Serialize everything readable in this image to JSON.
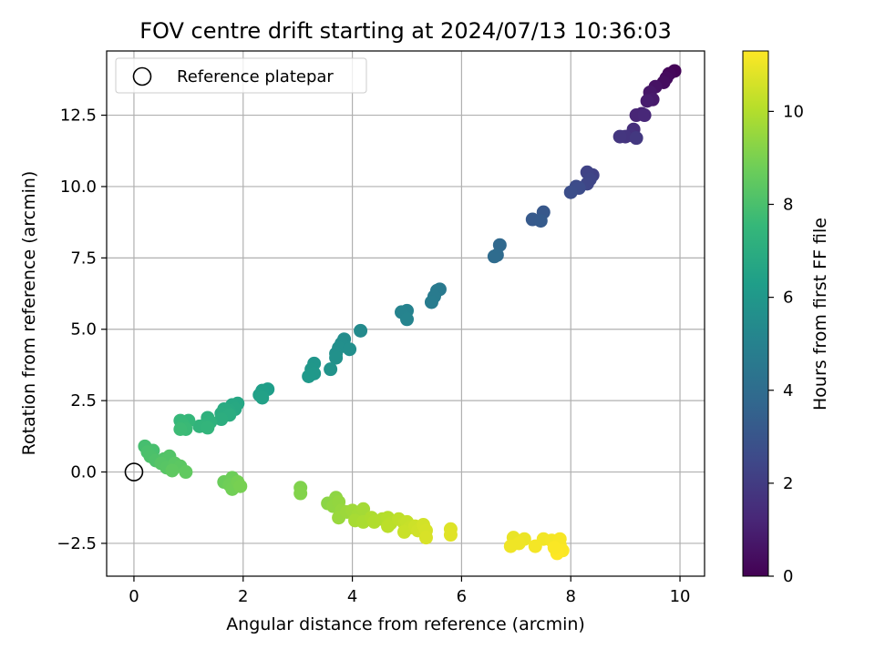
{
  "chart_data": {
    "type": "scatter",
    "title": "FOV centre drift starting at 2024/07/13 10:36:03",
    "xlabel": "Angular distance from reference (arcmin)",
    "ylabel": "Rotation from reference (arcmin)",
    "colorbar_label": "Hours from first FF file",
    "xlim": [
      -0.5,
      10.45
    ],
    "ylim": [
      -3.65,
      14.75
    ],
    "colorbar_range": [
      0,
      11.3
    ],
    "x_ticks": [
      0,
      2,
      4,
      6,
      8,
      10
    ],
    "x_tick_labels": [
      "0",
      "2",
      "4",
      "6",
      "8",
      "10"
    ],
    "y_ticks": [
      -2.5,
      0,
      2.5,
      5,
      7.5,
      10,
      12.5
    ],
    "y_tick_labels": [
      "−2.5",
      "0.0",
      "2.5",
      "5.0",
      "7.5",
      "10.0",
      "12.5"
    ],
    "colorbar_ticks": [
      0,
      2,
      4,
      6,
      8,
      10
    ],
    "colorbar_tick_labels": [
      "0",
      "2",
      "4",
      "6",
      "8",
      "10"
    ],
    "colormap": "viridis",
    "grid": true,
    "legend": {
      "position": "top-left",
      "entries": [
        "Reference platepar"
      ]
    },
    "reference_point": {
      "x": 0,
      "y": 0,
      "label": "Reference platepar"
    },
    "points": [
      [
        9.9,
        14.05,
        0.1
      ],
      [
        9.8,
        13.95,
        0.2
      ],
      [
        9.75,
        13.8,
        0.3
      ],
      [
        9.7,
        13.65,
        0.4
      ],
      [
        9.55,
        13.5,
        0.55
      ],
      [
        9.45,
        13.3,
        0.7
      ],
      [
        9.5,
        13.05,
        0.8
      ],
      [
        9.4,
        13.0,
        0.9
      ],
      [
        9.3,
        12.55,
        1.1
      ],
      [
        9.2,
        12.5,
        1.2
      ],
      [
        9.35,
        12.5,
        1.25
      ],
      [
        9.15,
        12.0,
        1.5
      ],
      [
        9.1,
        11.8,
        1.6
      ],
      [
        9.0,
        11.75,
        1.7
      ],
      [
        8.9,
        11.75,
        1.8
      ],
      [
        9.2,
        11.7,
        1.85
      ],
      [
        8.4,
        10.4,
        2.2
      ],
      [
        8.3,
        10.5,
        2.3
      ],
      [
        8.35,
        10.25,
        2.35
      ],
      [
        8.3,
        10.1,
        2.4
      ],
      [
        8.1,
        10.0,
        2.6
      ],
      [
        8.15,
        9.95,
        2.65
      ],
      [
        8.0,
        9.8,
        2.7
      ],
      [
        7.5,
        9.1,
        3.1
      ],
      [
        7.3,
        8.85,
        3.2
      ],
      [
        7.45,
        8.8,
        3.25
      ],
      [
        6.7,
        7.95,
        3.8
      ],
      [
        6.65,
        7.6,
        3.9
      ],
      [
        6.6,
        7.55,
        3.95
      ],
      [
        5.6,
        6.4,
        4.6
      ],
      [
        5.55,
        6.35,
        4.65
      ],
      [
        5.5,
        6.15,
        4.7
      ],
      [
        5.45,
        5.95,
        4.75
      ],
      [
        5.0,
        5.65,
        5.0
      ],
      [
        4.9,
        5.6,
        5.05
      ],
      [
        5.0,
        5.35,
        5.1
      ],
      [
        4.15,
        4.95,
        5.4
      ],
      [
        3.85,
        4.65,
        5.5
      ],
      [
        3.8,
        4.5,
        5.55
      ],
      [
        3.75,
        4.35,
        5.6
      ],
      [
        3.95,
        4.3,
        5.6
      ],
      [
        3.7,
        4.15,
        5.65
      ],
      [
        3.7,
        4.0,
        5.7
      ],
      [
        3.6,
        3.6,
        5.8
      ],
      [
        3.3,
        3.8,
        5.9
      ],
      [
        3.25,
        3.6,
        5.95
      ],
      [
        3.3,
        3.45,
        6.0
      ],
      [
        3.2,
        3.35,
        6.05
      ],
      [
        2.45,
        2.9,
        6.3
      ],
      [
        2.35,
        2.85,
        6.35
      ],
      [
        2.3,
        2.7,
        6.4
      ],
      [
        2.35,
        2.6,
        6.45
      ],
      [
        1.9,
        2.4,
        6.7
      ],
      [
        1.8,
        2.35,
        6.75
      ],
      [
        1.85,
        2.2,
        6.8
      ],
      [
        1.75,
        2.15,
        6.85
      ],
      [
        1.65,
        2.2,
        6.9
      ],
      [
        1.6,
        2.05,
        6.95
      ],
      [
        1.75,
        2.0,
        7.0
      ],
      [
        1.6,
        1.85,
        7.05
      ],
      [
        1.35,
        1.9,
        7.2
      ],
      [
        1.4,
        1.75,
        7.25
      ],
      [
        1.3,
        1.65,
        7.3
      ],
      [
        1.2,
        1.6,
        7.35
      ],
      [
        1.35,
        1.55,
        7.4
      ],
      [
        1.0,
        1.8,
        7.5
      ],
      [
        0.85,
        1.8,
        7.55
      ],
      [
        0.9,
        1.65,
        7.6
      ],
      [
        0.95,
        1.5,
        7.65
      ],
      [
        0.85,
        1.5,
        7.7
      ],
      [
        0.2,
        0.9,
        7.9
      ],
      [
        0.35,
        0.75,
        7.95
      ],
      [
        0.25,
        0.7,
        8.0
      ],
      [
        0.3,
        0.55,
        8.05
      ],
      [
        0.4,
        0.4,
        8.1
      ],
      [
        0.55,
        0.45,
        8.15
      ],
      [
        0.65,
        0.55,
        8.2
      ],
      [
        0.5,
        0.3,
        8.25
      ],
      [
        0.6,
        0.15,
        8.3
      ],
      [
        0.75,
        0.3,
        8.35
      ],
      [
        0.85,
        0.2,
        8.4
      ],
      [
        0.7,
        0.05,
        8.45
      ],
      [
        0.95,
        0.0,
        8.5
      ],
      [
        1.65,
        -0.35,
        8.7
      ],
      [
        1.8,
        -0.2,
        8.75
      ],
      [
        1.75,
        -0.45,
        8.8
      ],
      [
        1.8,
        -0.6,
        8.85
      ],
      [
        1.9,
        -0.35,
        8.9
      ],
      [
        1.95,
        -0.5,
        8.95
      ],
      [
        3.05,
        -0.55,
        9.1
      ],
      [
        3.05,
        -0.75,
        9.15
      ],
      [
        3.55,
        -1.1,
        9.3
      ],
      [
        3.7,
        -0.9,
        9.35
      ],
      [
        3.65,
        -1.2,
        9.4
      ],
      [
        3.75,
        -1.05,
        9.45
      ],
      [
        3.8,
        -1.35,
        9.5
      ],
      [
        3.75,
        -1.6,
        9.55
      ],
      [
        3.9,
        -1.4,
        9.6
      ],
      [
        4.0,
        -1.35,
        9.65
      ],
      [
        4.1,
        -1.5,
        9.7
      ],
      [
        4.2,
        -1.3,
        9.75
      ],
      [
        4.05,
        -1.7,
        9.8
      ],
      [
        4.2,
        -1.75,
        9.85
      ],
      [
        4.35,
        -1.6,
        9.9
      ],
      [
        4.4,
        -1.75,
        9.95
      ],
      [
        4.55,
        -1.65,
        10.0
      ],
      [
        4.65,
        -1.6,
        10.05
      ],
      [
        4.7,
        -1.8,
        10.1
      ],
      [
        4.65,
        -1.9,
        10.15
      ],
      [
        4.85,
        -1.65,
        10.2
      ],
      [
        4.95,
        -1.8,
        10.25
      ],
      [
        5.0,
        -1.75,
        10.3
      ],
      [
        5.05,
        -1.95,
        10.35
      ],
      [
        4.95,
        -2.1,
        10.4
      ],
      [
        5.15,
        -1.9,
        10.45
      ],
      [
        5.2,
        -2.05,
        10.5
      ],
      [
        5.3,
        -1.85,
        10.55
      ],
      [
        5.35,
        -2.05,
        10.6
      ],
      [
        5.35,
        -2.3,
        10.65
      ],
      [
        5.8,
        -2.0,
        10.75
      ],
      [
        5.8,
        -2.2,
        10.8
      ],
      [
        6.95,
        -2.3,
        10.95
      ],
      [
        7.15,
        -2.35,
        11.0
      ],
      [
        7.05,
        -2.5,
        11.05
      ],
      [
        6.9,
        -2.6,
        11.05
      ],
      [
        7.5,
        -2.35,
        11.1
      ],
      [
        7.35,
        -2.6,
        11.15
      ],
      [
        7.65,
        -2.4,
        11.15
      ],
      [
        7.8,
        -2.35,
        11.2
      ],
      [
        7.8,
        -2.55,
        11.2
      ],
      [
        7.85,
        -2.75,
        11.25
      ],
      [
        7.75,
        -2.85,
        11.3
      ],
      [
        7.7,
        -2.65,
        11.25
      ]
    ]
  }
}
